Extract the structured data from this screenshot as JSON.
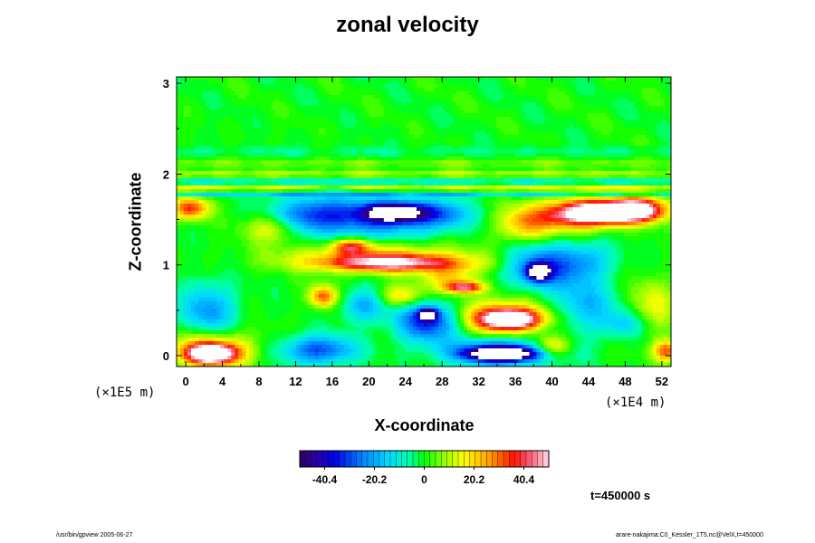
{
  "chart_data": {
    "type": "heatmap",
    "title": "zonal velocity",
    "xlabel": "X-coordinate",
    "ylabel": "Z-coordinate",
    "x_unit": "(×1E4 m)",
    "z_unit": "(×1E5 m)",
    "x_ticks": [
      "0",
      "4",
      "8",
      "12",
      "16",
      "20",
      "24",
      "28",
      "32",
      "36",
      "40",
      "44",
      "48",
      "52"
    ],
    "z_ticks": [
      "0",
      "1",
      "2",
      "3"
    ],
    "xlim": [
      -1.0,
      53.0
    ],
    "zlim": [
      -0.12,
      3.07
    ],
    "colorbar": {
      "min": -50.5,
      "max": 50.5,
      "ticks": [
        "-40.4",
        "-20.2",
        "0",
        "20.2",
        "40.4"
      ],
      "tick_values": [
        -40.4,
        -20.2,
        0,
        20.2,
        40.4
      ],
      "levels": 44
    },
    "background_value": 0,
    "features": [
      {
        "x": 23.0,
        "z": 1.58,
        "rx": 3.2,
        "rz": 0.1,
        "value": -52
      },
      {
        "x": 20.5,
        "z": 1.52,
        "rx": 7.5,
        "rz": 0.22,
        "value": -28
      },
      {
        "x": 13.5,
        "z": 1.55,
        "rx": 4.0,
        "rz": 0.2,
        "value": -22
      },
      {
        "x": 28.0,
        "z": 1.55,
        "rx": 3.0,
        "rz": 0.15,
        "value": -18
      },
      {
        "x": 46.5,
        "z": 1.58,
        "rx": 4.5,
        "rz": 0.12,
        "value": 55
      },
      {
        "x": 42.5,
        "z": 1.55,
        "rx": 4.0,
        "rz": 0.17,
        "value": 38
      },
      {
        "x": 49.5,
        "z": 1.62,
        "rx": 3.0,
        "rz": 0.14,
        "value": 40
      },
      {
        "x": 0.5,
        "z": 1.62,
        "rx": 2.0,
        "rz": 0.12,
        "value": 35
      },
      {
        "x": 37.0,
        "z": 1.45,
        "rx": 3.0,
        "rz": 0.2,
        "value": 24
      },
      {
        "x": 22.5,
        "z": 1.02,
        "rx": 7.5,
        "rz": 0.09,
        "value": 38
      },
      {
        "x": 21.0,
        "z": 1.08,
        "rx": 10.0,
        "rz": 0.16,
        "value": 22
      },
      {
        "x": 18.0,
        "z": 1.2,
        "rx": 2.0,
        "rz": 0.08,
        "value": 30
      },
      {
        "x": 38.5,
        "z": 0.92,
        "rx": 1.2,
        "rz": 0.09,
        "value": -52
      },
      {
        "x": 39.0,
        "z": 0.98,
        "rx": 4.0,
        "rz": 0.25,
        "value": -30
      },
      {
        "x": 44.0,
        "z": 1.05,
        "rx": 3.0,
        "rz": 0.2,
        "value": -15
      },
      {
        "x": 30.5,
        "z": 0.75,
        "rx": 2.0,
        "rz": 0.06,
        "value": 40
      },
      {
        "x": 29.0,
        "z": 0.85,
        "rx": 3.0,
        "rz": 0.15,
        "value": 20
      },
      {
        "x": 2.5,
        "z": 0.5,
        "rx": 3.0,
        "rz": 0.3,
        "value": -22
      },
      {
        "x": 15.0,
        "z": 0.65,
        "rx": 1.5,
        "rz": 0.12,
        "value": 32
      },
      {
        "x": 19.5,
        "z": 0.55,
        "rx": 2.5,
        "rz": 0.18,
        "value": -20
      },
      {
        "x": 23.5,
        "z": 0.65,
        "rx": 2.5,
        "rz": 0.12,
        "value": 22
      },
      {
        "x": 26.5,
        "z": 0.45,
        "rx": 0.9,
        "rz": 0.06,
        "value": -52
      },
      {
        "x": 26.5,
        "z": 0.38,
        "rx": 3.5,
        "rz": 0.22,
        "value": -36
      },
      {
        "x": 35.5,
        "z": 0.4,
        "rx": 3.0,
        "rz": 0.1,
        "value": 52
      },
      {
        "x": 34.5,
        "z": 0.42,
        "rx": 5.0,
        "rz": 0.2,
        "value": 32
      },
      {
        "x": 43.5,
        "z": 0.55,
        "rx": 3.5,
        "rz": 0.3,
        "value": -18
      },
      {
        "x": 51.0,
        "z": 0.55,
        "rx": 2.5,
        "rz": 0.3,
        "value": 15
      },
      {
        "x": 34.5,
        "z": 0.02,
        "rx": 3.5,
        "rz": 0.07,
        "value": -60
      },
      {
        "x": 34.5,
        "z": 0.04,
        "rx": 6.0,
        "rz": 0.16,
        "value": -34
      },
      {
        "x": 2.8,
        "z": 0.02,
        "rx": 2.5,
        "rz": 0.1,
        "value": 58
      },
      {
        "x": 2.8,
        "z": 0.06,
        "rx": 4.5,
        "rz": 0.2,
        "value": 30
      },
      {
        "x": 14.5,
        "z": 0.06,
        "rx": 4.0,
        "rz": 0.16,
        "value": -30
      },
      {
        "x": 40.0,
        "z": 0.1,
        "rx": 2.0,
        "rz": 0.12,
        "value": 28
      },
      {
        "x": 52.5,
        "z": 0.05,
        "rx": 1.5,
        "rz": 0.12,
        "value": 32
      },
      {
        "x": 48.0,
        "z": 0.35,
        "rx": 2.5,
        "rz": 0.15,
        "value": -14
      },
      {
        "x": 9.5,
        "z": 1.4,
        "rx": 3.0,
        "rz": 0.15,
        "value": 18
      }
    ],
    "bands": [
      {
        "z": 1.78,
        "hz": 0.03,
        "value": -18
      },
      {
        "z": 1.84,
        "hz": 0.03,
        "value": 20
      },
      {
        "z": 1.92,
        "hz": 0.04,
        "value": -10
      },
      {
        "z": 2.0,
        "hz": 0.04,
        "value": 12
      },
      {
        "z": 2.12,
        "hz": 0.05,
        "value": 7
      },
      {
        "z": 2.25,
        "hz": 0.06,
        "value": -5
      }
    ]
  },
  "time_label": "t=450000 s",
  "footer": {
    "left": "/usr/bin/gpview 2005-06-27",
    "right": "arare-nakajima:C0_Kessler_1T5.nc@VelX,t=450000"
  }
}
